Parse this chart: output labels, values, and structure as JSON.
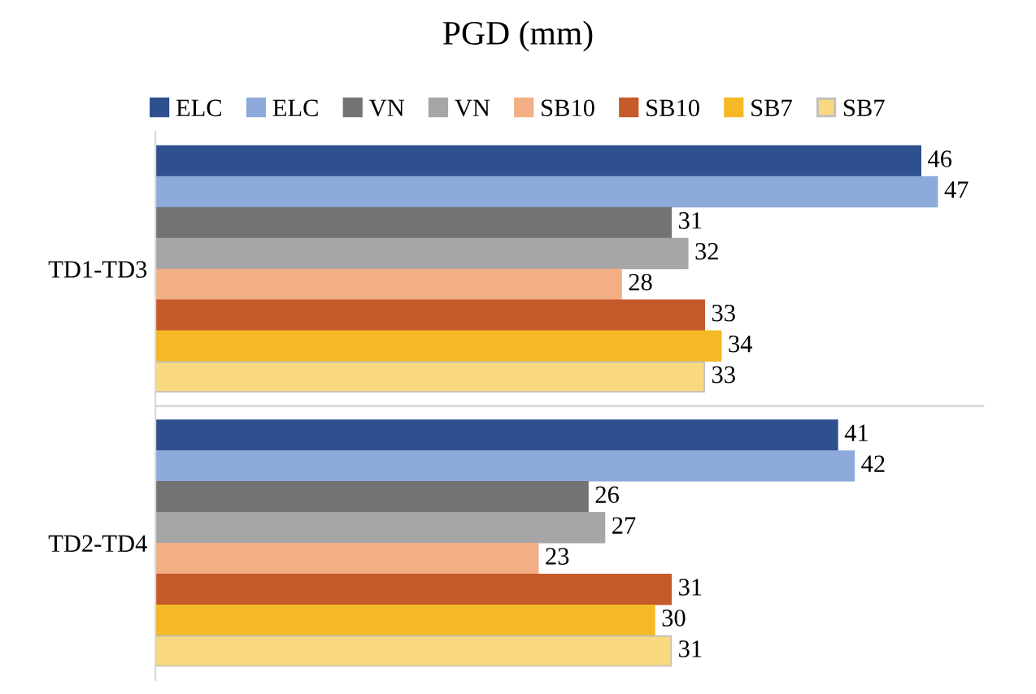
{
  "chart_data": {
    "type": "bar",
    "orientation": "horizontal",
    "title": "PGD (mm)",
    "categories": [
      "TD1-TD3",
      "TD2-TD4"
    ],
    "series": [
      {
        "name": "ELC",
        "color": "#2f4f8f",
        "values": [
          46,
          41
        ]
      },
      {
        "name": "ELC",
        "color": "#8eaadb",
        "values": [
          47,
          42
        ]
      },
      {
        "name": "VN",
        "color": "#737373",
        "values": [
          31,
          26
        ]
      },
      {
        "name": "VN",
        "color": "#a6a6a6",
        "values": [
          32,
          27
        ]
      },
      {
        "name": "SB10",
        "color": "#f2ae85",
        "values": [
          28,
          23
        ]
      },
      {
        "name": "SB10",
        "color": "#c55a2a",
        "values": [
          33,
          31
        ]
      },
      {
        "name": "SB7",
        "color": "#f4b924",
        "values": [
          34,
          30
        ]
      },
      {
        "name": "SB7",
        "color": "#f8d97f",
        "values": [
          33,
          31
        ]
      }
    ],
    "data_labels": true,
    "legend": "top",
    "grid": false,
    "tick_labels": "y"
  }
}
